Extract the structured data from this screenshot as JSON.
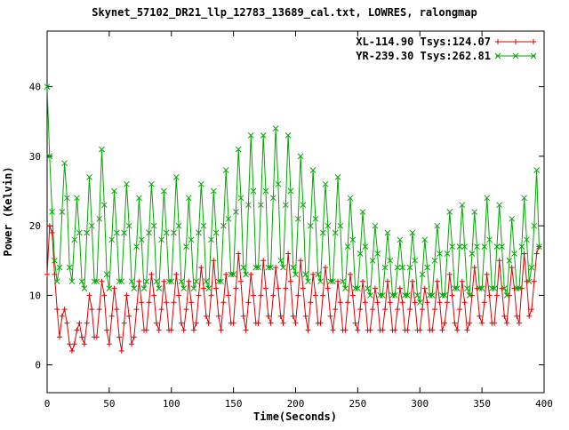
{
  "chart_data": {
    "type": "line",
    "title": "Skynet_57102_DR21_llp_12783_13689_cal.txt, LOWRES, ralongmap",
    "xlabel": "Time(Seconds)",
    "ylabel": "Power (Kelvin)",
    "xlim": [
      0,
      400
    ],
    "ylim": [
      -4,
      48
    ],
    "xticks": [
      0,
      50,
      100,
      150,
      200,
      250,
      300,
      350,
      400
    ],
    "yticks": [
      0,
      10,
      20,
      30,
      40
    ],
    "grid": false,
    "legend_position": "top-right",
    "background": "#ffffff",
    "axis_color": "#000000",
    "x_start": 0,
    "x_step": 2,
    "series": [
      {
        "name": "XL",
        "label": "XL-114.90 Tsys:124.07",
        "color": "#dd0000",
        "marker": "plus",
        "values": [
          13,
          20,
          19,
          13,
          8,
          4,
          7,
          8,
          6,
          3,
          2,
          3,
          5,
          6,
          4,
          3,
          6,
          10,
          8,
          4,
          4,
          8,
          12,
          10,
          5,
          3,
          7,
          11,
          8,
          4,
          2,
          6,
          10,
          7,
          3,
          4,
          8,
          12,
          9,
          5,
          5,
          9,
          13,
          10,
          6,
          5,
          8,
          12,
          9,
          5,
          5,
          9,
          13,
          10,
          6,
          5,
          8,
          12,
          9,
          5,
          6,
          10,
          14,
          11,
          7,
          6,
          10,
          15,
          11,
          7,
          5,
          9,
          13,
          10,
          6,
          6,
          11,
          16,
          12,
          7,
          5,
          9,
          13,
          10,
          6,
          6,
          10,
          15,
          11,
          7,
          6,
          10,
          14,
          11,
          7,
          6,
          11,
          16,
          12,
          7,
          6,
          10,
          15,
          11,
          7,
          5,
          9,
          13,
          10,
          6,
          6,
          10,
          14,
          11,
          7,
          5,
          8,
          12,
          9,
          5,
          5,
          9,
          13,
          10,
          6,
          5,
          8,
          12,
          9,
          5,
          5,
          8,
          11,
          9,
          5,
          5,
          8,
          12,
          9,
          5,
          5,
          8,
          11,
          9,
          5,
          5,
          8,
          12,
          9,
          5,
          5,
          8,
          11,
          9,
          5,
          5,
          8,
          12,
          9,
          5,
          6,
          9,
          13,
          10,
          6,
          5,
          8,
          12,
          9,
          5,
          6,
          10,
          14,
          11,
          7,
          6,
          9,
          13,
          10,
          6,
          6,
          10,
          15,
          11,
          7,
          6,
          10,
          14,
          11,
          7,
          6,
          11,
          16,
          12,
          7,
          8,
          12,
          16,
          17
        ]
      },
      {
        "name": "YR",
        "label": "YR-239.30 Tsys:262.81",
        "color": "#00a800",
        "marker": "cross",
        "values": [
          40,
          30,
          22,
          15,
          12,
          14,
          22,
          29,
          24,
          14,
          12,
          18,
          24,
          19,
          12,
          11,
          19,
          27,
          20,
          12,
          12,
          21,
          31,
          23,
          13,
          11,
          18,
          25,
          19,
          12,
          12,
          19,
          26,
          20,
          12,
          11,
          17,
          24,
          18,
          11,
          12,
          19,
          26,
          20,
          12,
          11,
          18,
          25,
          19,
          12,
          12,
          19,
          27,
          20,
          12,
          11,
          17,
          24,
          18,
          11,
          12,
          19,
          26,
          20,
          12,
          11,
          18,
          25,
          19,
          12,
          12,
          20,
          28,
          21,
          13,
          13,
          22,
          31,
          24,
          14,
          13,
          23,
          33,
          25,
          14,
          14,
          23,
          33,
          25,
          14,
          14,
          24,
          34,
          26,
          15,
          14,
          23,
          33,
          25,
          14,
          13,
          21,
          30,
          23,
          13,
          12,
          20,
          28,
          21,
          13,
          12,
          19,
          26,
          20,
          12,
          12,
          19,
          27,
          20,
          12,
          11,
          17,
          24,
          18,
          11,
          11,
          16,
          22,
          17,
          11,
          10,
          15,
          20,
          16,
          10,
          10,
          14,
          19,
          15,
          10,
          10,
          14,
          18,
          14,
          10,
          10,
          14,
          19,
          15,
          10,
          9,
          13,
          18,
          14,
          10,
          10,
          15,
          20,
          16,
          10,
          10,
          16,
          22,
          17,
          11,
          11,
          17,
          23,
          17,
          11,
          10,
          16,
          22,
          17,
          11,
          11,
          17,
          24,
          18,
          11,
          11,
          17,
          23,
          17,
          11,
          10,
          15,
          21,
          16,
          11,
          11,
          17,
          24,
          18,
          12,
          14,
          20,
          28,
          17
        ]
      }
    ]
  }
}
